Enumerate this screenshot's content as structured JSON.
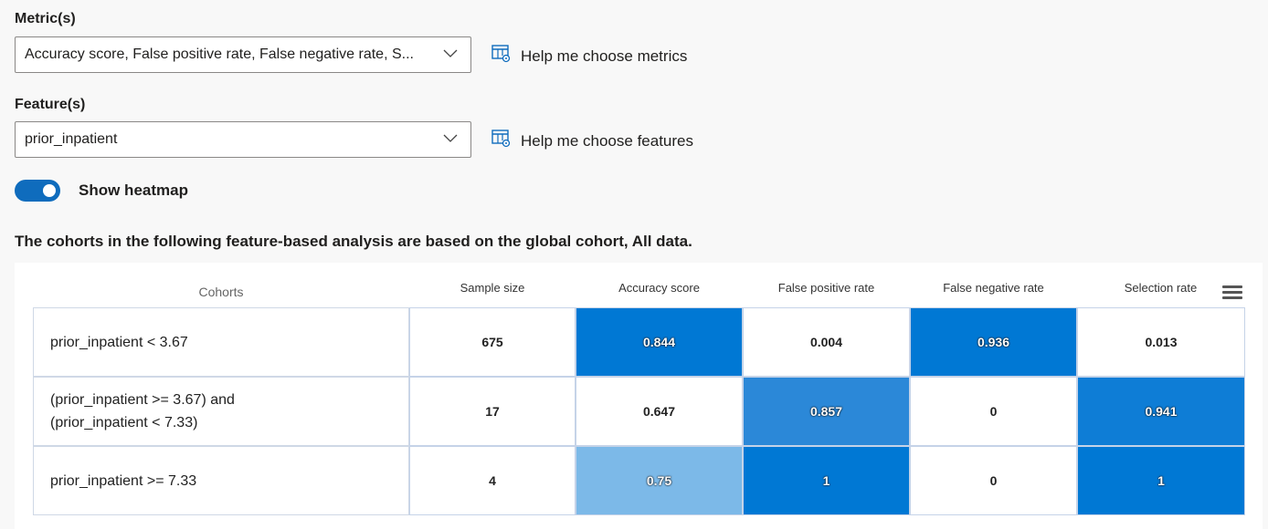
{
  "metrics": {
    "label": "Metric(s)",
    "value": "Accuracy score, False positive rate, False negative rate, S...",
    "help": "Help me choose metrics"
  },
  "features": {
    "label": "Feature(s)",
    "value": "prior_inpatient",
    "help": "Help me choose features"
  },
  "heatmap_toggle": {
    "label": "Show heatmap",
    "on": true
  },
  "info_text": "The cohorts in the following feature-based analysis are based on the global cohort, All data.",
  "table": {
    "headers": [
      "Cohorts",
      "Sample size",
      "Accuracy score",
      "False positive rate",
      "False negative rate",
      "Selection rate"
    ],
    "rows": [
      {
        "cohort": "prior_inpatient < 3.67",
        "cohort_lines": [
          "prior_inpatient < 3.67"
        ],
        "cells": [
          "675",
          "0.844",
          "0.004",
          "0.936",
          "0.013"
        ]
      },
      {
        "cohort": "(prior_inpatient >= 3.67) and (prior_inpatient < 7.33)",
        "cohort_lines": [
          "(prior_inpatient >= 3.67) and",
          "(prior_inpatient < 7.33)"
        ],
        "cells": [
          "17",
          "0.647",
          "0.857",
          "0",
          "0.941"
        ]
      },
      {
        "cohort": "prior_inpatient >= 7.33",
        "cohort_lines": [
          "prior_inpatient >= 7.33"
        ],
        "cells": [
          "4",
          "0.75",
          "1",
          "0",
          "1"
        ]
      }
    ],
    "cell_colors": [
      [
        "#ffffff",
        "#0078d4",
        "#ffffff",
        "#0078d4",
        "#ffffff"
      ],
      [
        "#ffffff",
        "#ffffff",
        "#2b88d8",
        "#ffffff",
        "#0e7dd6"
      ],
      [
        "#ffffff",
        "#7cb9e8",
        "#0078d4",
        "#ffffff",
        "#0078d4"
      ]
    ],
    "dark_text": [
      [
        false,
        true,
        false,
        true,
        false
      ],
      [
        false,
        false,
        true,
        false,
        true
      ],
      [
        false,
        true,
        true,
        false,
        true
      ]
    ]
  },
  "colors": {
    "accent": "#0f6cbd",
    "heat_strong": "#0078d4"
  }
}
